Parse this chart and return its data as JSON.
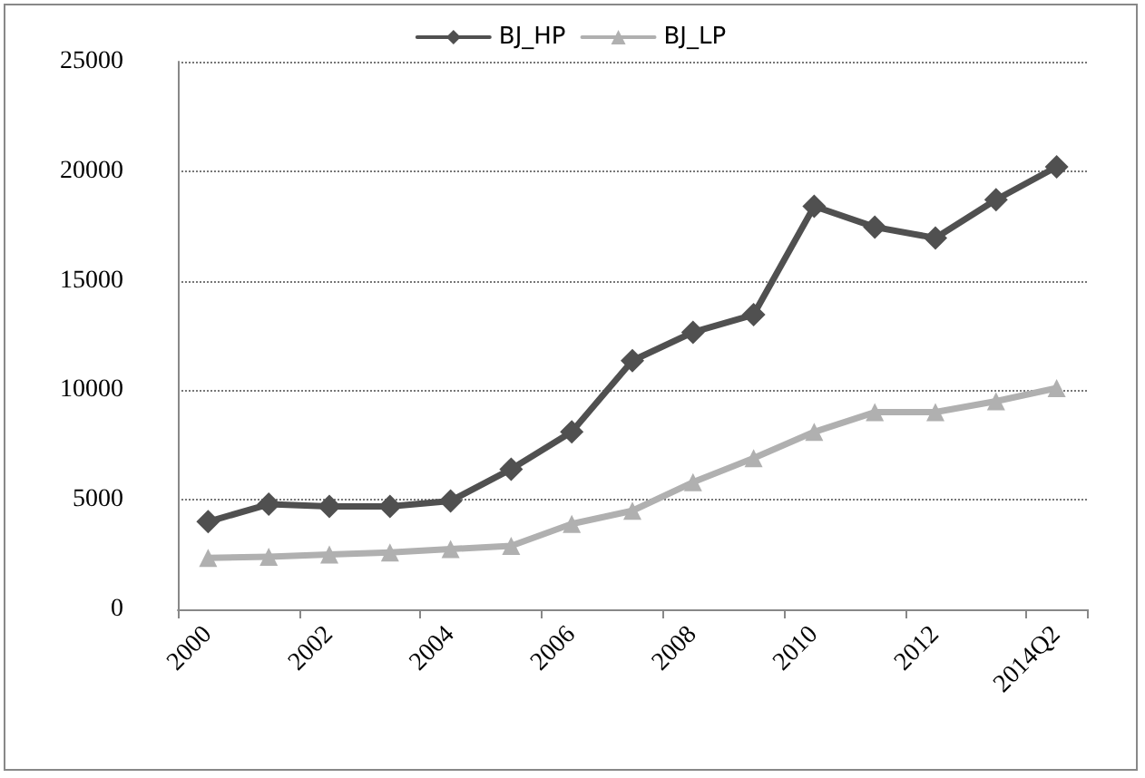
{
  "chart_data": {
    "type": "line",
    "categories": [
      "2000",
      null,
      "2002",
      null,
      "2004",
      null,
      "2006",
      null,
      "2008",
      null,
      "2010",
      null,
      "2012",
      null,
      "2014Q2"
    ],
    "series": [
      {
        "name": "BJ_HP",
        "color": "#505050",
        "marker": "diamond",
        "values": [
          4000,
          4800,
          4700,
          4700,
          4950,
          6400,
          8100,
          11350,
          12650,
          13450,
          18400,
          17450,
          16950,
          18700,
          20200
        ]
      },
      {
        "name": "BJ_LP",
        "color": "#b0b0b0",
        "marker": "triangle",
        "values": [
          2350,
          2400,
          2500,
          2600,
          2750,
          2900,
          3900,
          4500,
          5800,
          6900,
          8100,
          9000,
          9000,
          9500,
          10100
        ]
      }
    ],
    "ylim": [
      0,
      25000
    ],
    "yticks": [
      0,
      5000,
      10000,
      15000,
      20000,
      25000
    ],
    "grid": "y",
    "legend": "top",
    "line_style": "solid"
  }
}
